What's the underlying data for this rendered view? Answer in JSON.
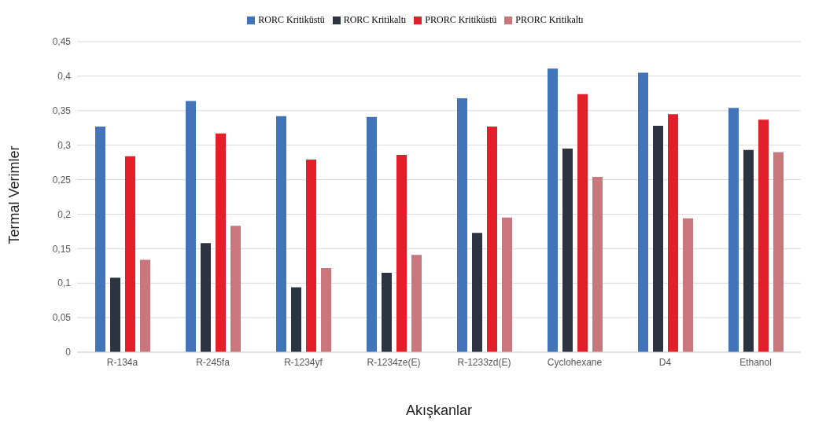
{
  "chart_data": {
    "type": "bar",
    "xlabel": "Akışkanlar",
    "ylabel": "Termal Verimler",
    "categories": [
      "R-134a",
      "R-245fa",
      "R-1234yf",
      "R-1234ze(E)",
      "R-1233zd(E)",
      "Cyclohexane",
      "D4",
      "Ethanol"
    ],
    "series": [
      {
        "name": "RORC Kritiküstü",
        "color": "#4174b8",
        "values": [
          0.327,
          0.364,
          0.342,
          0.341,
          0.368,
          0.411,
          0.405,
          0.354
        ]
      },
      {
        "name": "RORC Kritikaltı",
        "color": "#2b3440",
        "values": [
          0.108,
          0.158,
          0.094,
          0.115,
          0.173,
          0.295,
          0.328,
          0.293
        ]
      },
      {
        "name": "PRORC Kritiküstü",
        "color": "#e3202a",
        "values": [
          0.284,
          0.317,
          0.279,
          0.286,
          0.327,
          0.374,
          0.345,
          0.337
        ]
      },
      {
        "name": "PRORC Kritikaltı",
        "color": "#c9767c",
        "values": [
          0.134,
          0.183,
          0.122,
          0.141,
          0.195,
          0.254,
          0.194,
          0.29
        ]
      }
    ],
    "ylim": [
      0,
      0.45
    ],
    "yticks": [
      0,
      {
        "value": 0.05,
        "label": "0,05"
      },
      {
        "value": 0.1,
        "label": "0,1"
      },
      {
        "value": 0.15,
        "label": "0,15"
      },
      {
        "value": 0.2,
        "label": "0,2"
      },
      {
        "value": 0.25,
        "label": "0,25"
      },
      {
        "value": 0.3,
        "label": "0,3"
      },
      {
        "value": 0.35,
        "label": "0,35"
      },
      {
        "value": 0.4,
        "label": "0,4"
      },
      {
        "value": 0.45,
        "label": "0,45"
      }
    ],
    "grid": "y",
    "legend": "top"
  }
}
